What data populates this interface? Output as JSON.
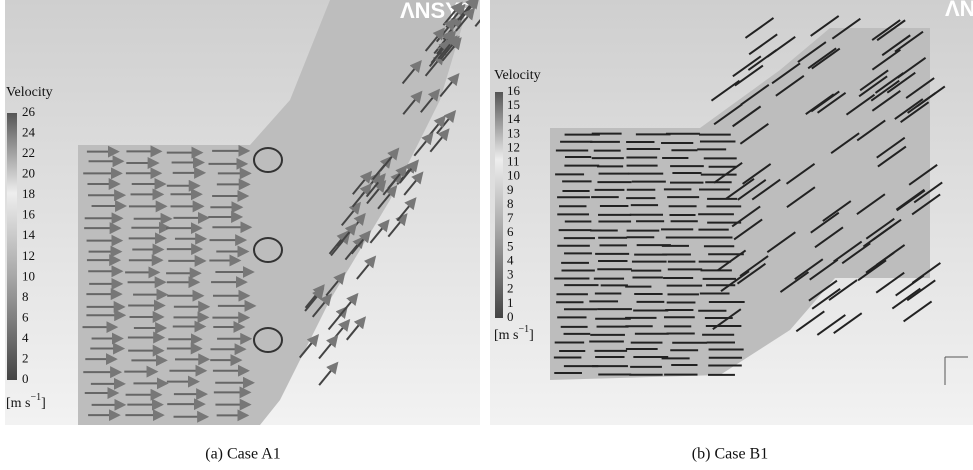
{
  "panels": [
    {
      "logo": "ΛNSYS",
      "legend": {
        "title": "Velocity",
        "ticks": [
          26,
          24,
          22,
          20,
          18,
          16,
          14,
          12,
          10,
          8,
          6,
          4,
          2,
          0
        ],
        "unit": {
          "base": "[m s",
          "exponent": "−1",
          "close": "]"
        }
      },
      "caption": "(a) Case A1"
    },
    {
      "logo": "ΛNSYS",
      "legend": {
        "title": "Velocity",
        "ticks": [
          16,
          15,
          14,
          13,
          12,
          11,
          10,
          9,
          8,
          7,
          6,
          5,
          4,
          3,
          2,
          1,
          0
        ],
        "unit": {
          "base": "[m s",
          "exponent": "−1",
          "close": "]"
        }
      },
      "caption": "(b) Case B1"
    }
  ]
}
